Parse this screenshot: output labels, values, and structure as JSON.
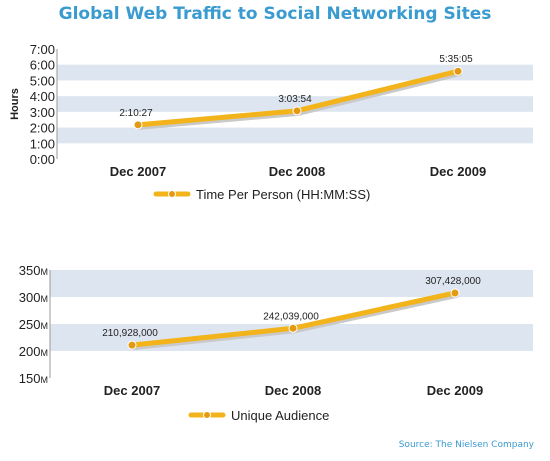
{
  "page": {
    "title": "Global Web Traffic to Social Networking Sites",
    "source": "Source: The Nielsen Company"
  },
  "colors": {
    "title": "#3a9bd0",
    "band": "#dde6f0",
    "line": "#f2b31b",
    "marker": "#e39a10",
    "shadow": "#c9c9c9",
    "text": "#222222"
  },
  "chart_data": [
    {
      "type": "line",
      "title": "",
      "ylabel": "Hours",
      "xlabel": "",
      "categories": [
        "Dec 2007",
        "Dec 2008",
        "Dec 2009"
      ],
      "ylim": [
        0,
        7
      ],
      "yticks": [
        0,
        1,
        2,
        3,
        4,
        5,
        6,
        7
      ],
      "ytick_labels": [
        "0:00",
        "1:00",
        "2:00",
        "3:00",
        "4:00",
        "5:00",
        "6:00",
        "7:00"
      ],
      "grid": "alternating horizontal bands",
      "legend": "bottom-center",
      "series": [
        {
          "name": "Time Per Person (HH:MM:SS)",
          "values": [
            2.174,
            3.065,
            5.585
          ],
          "labels": [
            "2:10:27",
            "3:03:54",
            "5:35:05"
          ]
        }
      ]
    },
    {
      "type": "line",
      "title": "",
      "ylabel": "",
      "xlabel": "",
      "categories": [
        "Dec 2007",
        "Dec 2008",
        "Dec 2009"
      ],
      "ylim": [
        150000000,
        350000000
      ],
      "yticks": [
        150000000,
        200000000,
        250000000,
        300000000,
        350000000
      ],
      "ytick_labels": [
        "150",
        "200",
        "250",
        "300",
        "350"
      ],
      "ytick_suffix": "M",
      "grid": "alternating horizontal bands",
      "legend": "bottom-center",
      "series": [
        {
          "name": "Unique Audience",
          "values": [
            210928000,
            242039000,
            307428000
          ],
          "labels": [
            "210,928,000",
            "242,039,000",
            "307,428,000"
          ]
        }
      ]
    }
  ]
}
